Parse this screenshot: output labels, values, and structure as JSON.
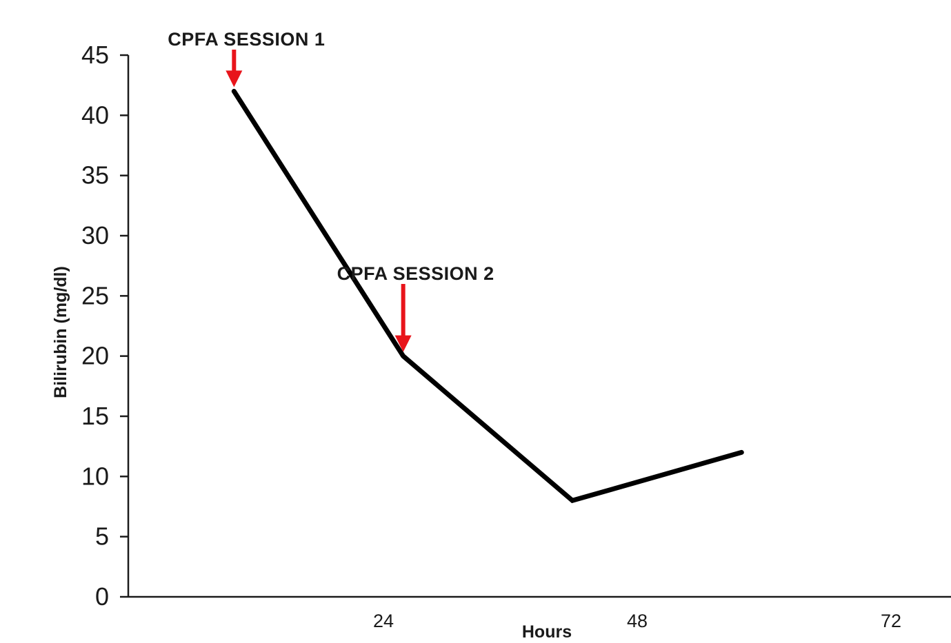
{
  "chart_data": {
    "type": "line",
    "xlabel": "Hours",
    "ylabel": "Bilirubin (mg/dl)",
    "xlim": [
      0,
      72
    ],
    "ylim": [
      0,
      45
    ],
    "x_ticks": [
      24,
      48,
      72
    ],
    "y_ticks": [
      0,
      5,
      10,
      15,
      20,
      25,
      30,
      35,
      40,
      45
    ],
    "grid": false,
    "series": [
      {
        "x": [
          10,
          26,
          42,
          58
        ],
        "y": [
          42,
          20,
          8,
          12
        ],
        "color": "#000000"
      }
    ],
    "annotations": [
      {
        "text": "CPFA SESSION 1",
        "x": 10,
        "y": 42,
        "marker": "red-down-arrow"
      },
      {
        "text": "CPFA SESSION 2",
        "x": 26,
        "y": 20,
        "marker": "red-down-arrow"
      }
    ],
    "colors": {
      "line": "#000000",
      "axis": "#1a1a1a",
      "arrow": "#e8141b"
    }
  }
}
